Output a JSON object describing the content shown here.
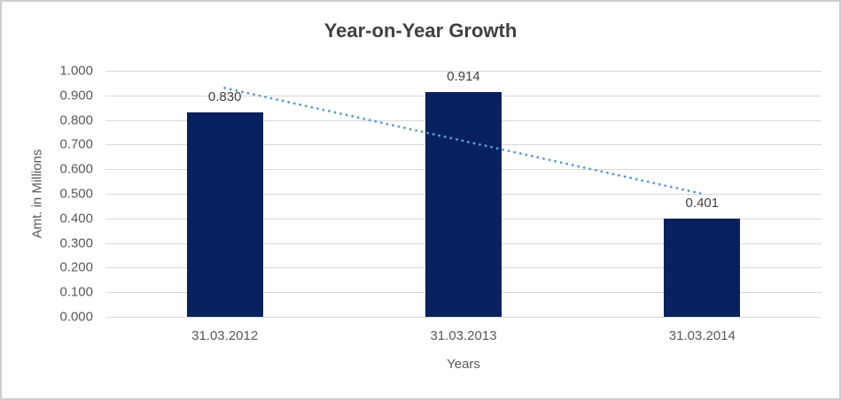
{
  "chart_data": {
    "type": "bar",
    "title": "Year-on-Year Growth",
    "xlabel": "Years",
    "ylabel": "Amt. in Millions",
    "categories": [
      "31.03.2012",
      "31.03.2013",
      "31.03.2014"
    ],
    "values": [
      0.83,
      0.914,
      0.401
    ],
    "data_labels": [
      "0.830",
      "0.914",
      "0.401"
    ],
    "ylim": [
      0.0,
      1.0
    ],
    "ytick_step": 0.1,
    "ytick_labels": [
      "0.000",
      "0.100",
      "0.200",
      "0.300",
      "0.400",
      "0.500",
      "0.600",
      "0.700",
      "0.800",
      "0.900",
      "1.000"
    ],
    "grid": "horizontal",
    "legend": "none",
    "trendline": {
      "type": "linear",
      "style": "dotted",
      "start_value": 0.93,
      "end_value": 0.5
    },
    "colors": {
      "bar": "#08215f",
      "trendline": "#5b9bd5",
      "gridline": "#d9d9d9",
      "title_text": "#404040",
      "tick_text": "#595959",
      "axis_title_text": "#595959",
      "data_label_text": "#404040",
      "frame_border": "#cdcdcd",
      "background": "#ffffff"
    }
  }
}
